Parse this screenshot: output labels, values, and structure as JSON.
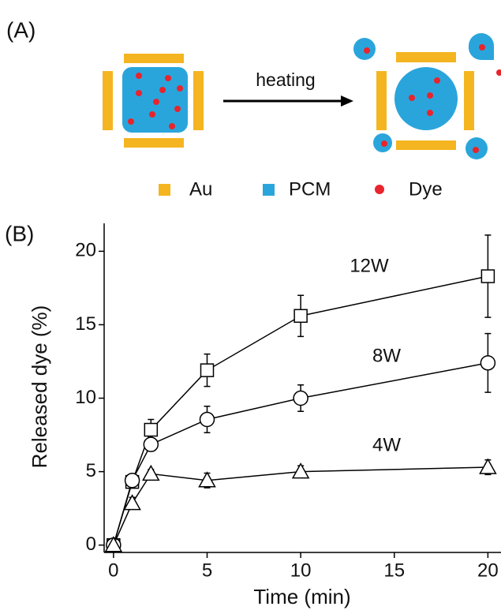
{
  "panel_a": {
    "label": "(A)",
    "arrow_label": "heating",
    "legend": [
      "Au",
      "PCM",
      "Dye"
    ]
  },
  "chart_data": {
    "type": "line",
    "panel_label": "(B)",
    "x_label": "Time (min)",
    "y_label": "Released dye (%)",
    "xlim": [
      -0.5,
      20.7
    ],
    "ylim": [
      -0.5,
      21.9
    ],
    "xticks": [
      0,
      5,
      10,
      15,
      20
    ],
    "yticks": [
      0,
      5,
      10,
      15,
      20
    ],
    "x": [
      0,
      1,
      2,
      5,
      10,
      20
    ],
    "series": [
      {
        "name": "12W",
        "color": "#000000",
        "marker": "square",
        "values": [
          0,
          4.3,
          7.85,
          11.9,
          15.6,
          18.3
        ],
        "errors": [
          0,
          0.3,
          0.7,
          1.1,
          1.4,
          2.8
        ]
      },
      {
        "name": "8W",
        "color": "#000000",
        "marker": "circle",
        "values": [
          0,
          4.4,
          6.85,
          8.55,
          10.0,
          12.4
        ],
        "errors": [
          0,
          0.3,
          0.4,
          0.9,
          0.9,
          2.0
        ]
      },
      {
        "name": "4W",
        "color": "#000000",
        "marker": "triangle",
        "values": [
          0,
          2.85,
          4.85,
          4.4,
          5.0,
          5.3
        ],
        "errors": [
          0,
          0.4,
          0.3,
          0.5,
          0.4,
          0.5
        ]
      }
    ]
  }
}
